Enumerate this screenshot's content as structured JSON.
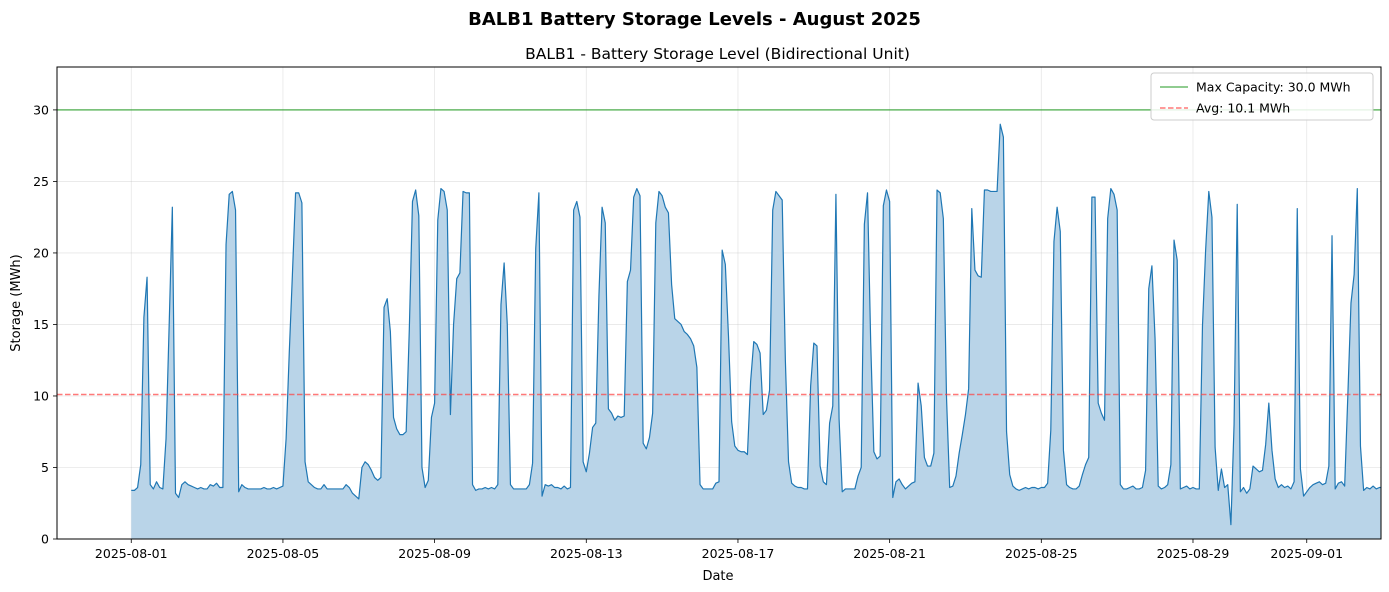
{
  "chart_data": {
    "type": "area",
    "suptitle": "BALB1 Battery Storage Levels - August 2025",
    "title": "BALB1 - Battery Storage Level (Bidirectional Unit)",
    "xlabel": "Date",
    "ylabel": "Storage (MWh)",
    "xlim": [
      "2025-07-30T01:00",
      "2025-09-02T23:00"
    ],
    "ylim": [
      0,
      33
    ],
    "x_ticks": [
      "2025-08-01",
      "2025-08-05",
      "2025-08-09",
      "2025-08-13",
      "2025-08-17",
      "2025-08-21",
      "2025-08-25",
      "2025-08-29",
      "2025-09-01"
    ],
    "y_ticks": [
      "0",
      "5",
      "10",
      "15",
      "20",
      "25",
      "30"
    ],
    "grid": true,
    "legend_position": "top-right",
    "reference_lines": [
      {
        "name": "Max Capacity: 30.0 MWh",
        "value": 30.0,
        "color": "#2ca02c",
        "style": "solid"
      },
      {
        "name": "Avg: 10.1 MWh",
        "value": 10.1,
        "color": "#ff4040",
        "style": "dashed"
      }
    ],
    "series": [
      {
        "color": "#1f77b4",
        "fill": "#b9d4e8",
        "start": "2025-08-01T00:00",
        "step_hours": 2,
        "values": [
          3.4,
          3.4,
          3.6,
          5.2,
          15.5,
          18.3,
          3.8,
          3.5,
          4.0,
          3.6,
          3.5,
          7.0,
          15.0,
          23.2,
          3.2,
          2.9,
          3.8,
          4.0,
          3.8,
          3.7,
          3.6,
          3.5,
          3.6,
          3.5,
          3.5,
          3.8,
          3.7,
          3.9,
          3.6,
          3.6,
          20.6,
          24.1,
          24.3,
          23.0,
          3.3,
          3.8,
          3.6,
          3.5,
          3.5,
          3.5,
          3.5,
          3.5,
          3.6,
          3.5,
          3.5,
          3.6,
          3.5,
          3.6,
          3.7,
          7.0,
          13.0,
          18.5,
          24.2,
          24.2,
          23.5,
          5.4,
          4.0,
          3.8,
          3.6,
          3.5,
          3.5,
          3.8,
          3.5,
          3.5,
          3.5,
          3.5,
          3.5,
          3.5,
          3.8,
          3.6,
          3.2,
          3.0,
          2.8,
          5.0,
          5.4,
          5.2,
          4.8,
          4.3,
          4.1,
          4.3,
          16.2,
          16.8,
          14.5,
          8.5,
          7.7,
          7.3,
          7.3,
          7.5,
          14.7,
          23.6,
          24.4,
          22.6,
          5.0,
          3.6,
          4.1,
          8.5,
          9.5,
          22.3,
          24.5,
          24.3,
          23.0,
          8.7,
          15.0,
          18.2,
          18.6,
          24.3,
          24.2,
          24.2,
          3.8,
          3.4,
          3.5,
          3.5,
          3.6,
          3.5,
          3.6,
          3.5,
          3.8,
          16.4,
          19.3,
          15.0,
          3.8,
          3.5,
          3.5,
          3.5,
          3.5,
          3.5,
          3.8,
          5.3,
          20.3,
          24.2,
          3.0,
          3.8,
          3.7,
          3.8,
          3.6,
          3.6,
          3.5,
          3.7,
          3.5,
          3.6,
          23.0,
          23.6,
          22.5,
          5.4,
          4.7,
          6.0,
          7.8,
          8.1,
          17.0,
          23.2,
          22.1,
          9.1,
          8.8,
          8.3,
          8.6,
          8.5,
          8.6,
          18.0,
          18.8,
          23.9,
          24.5,
          24.0,
          6.7,
          6.3,
          7.1,
          8.8,
          22.1,
          24.3,
          24.0,
          23.2,
          22.8,
          17.8,
          15.4,
          15.2,
          15.0,
          14.5,
          14.3,
          14.0,
          13.5,
          12.0,
          3.8,
          3.5,
          3.5,
          3.5,
          3.5,
          3.9,
          4.0,
          20.2,
          19.2,
          14.2,
          8.2,
          6.5,
          6.2,
          6.1,
          6.1,
          5.9,
          11.0,
          13.8,
          13.6,
          13.0,
          8.7,
          9.0,
          10.4,
          23.0,
          24.3,
          24.0,
          23.7,
          12.5,
          5.4,
          3.9,
          3.7,
          3.6,
          3.6,
          3.5,
          3.5,
          10.7,
          13.7,
          13.5,
          5.1,
          4.0,
          3.8,
          8.1,
          9.3,
          24.1,
          8.4,
          3.3,
          3.5,
          3.5,
          3.5,
          3.5,
          4.4,
          5.0,
          22.0,
          24.2,
          13.8,
          6.1,
          5.6,
          5.8,
          23.3,
          24.4,
          23.6,
          2.9,
          4.0,
          4.2,
          3.8,
          3.5,
          3.7,
          3.9,
          4.0,
          10.9,
          9.3,
          5.7,
          5.1,
          5.1,
          6.0,
          24.4,
          24.2,
          22.4,
          9.9,
          3.6,
          3.7,
          4.4,
          6.0,
          7.3,
          8.7,
          10.5,
          23.1,
          18.8,
          18.4,
          18.3,
          24.4,
          24.4,
          24.3,
          24.3,
          24.3,
          29.0,
          28.1,
          7.5,
          4.5,
          3.7,
          3.5,
          3.4,
          3.5,
          3.6,
          3.5,
          3.6,
          3.6,
          3.5,
          3.6,
          3.6,
          3.9,
          7.6,
          20.8,
          23.2,
          21.5,
          6.2,
          3.8,
          3.6,
          3.5,
          3.5,
          3.7,
          4.5,
          5.2,
          5.7,
          23.9,
          23.9,
          9.5,
          8.8,
          8.3,
          22.4,
          24.5,
          24.1,
          23.0,
          3.8,
          3.5,
          3.5,
          3.6,
          3.7,
          3.5,
          3.5,
          3.6,
          4.8,
          17.5,
          19.1,
          14.0,
          3.7,
          3.5,
          3.6,
          3.8,
          5.2,
          20.9,
          19.5,
          3.5,
          3.6,
          3.7,
          3.5,
          3.6,
          3.5,
          3.5,
          14.9,
          20.2,
          24.3,
          22.5,
          6.4,
          3.4,
          4.9,
          3.6,
          3.8,
          1.0,
          8.0,
          23.4,
          3.3,
          3.6,
          3.2,
          3.5,
          5.1,
          4.9,
          4.7,
          4.8,
          6.6,
          9.5,
          6.2,
          4.2,
          3.6,
          3.8,
          3.6,
          3.7,
          3.5,
          4.0,
          23.1,
          4.9,
          3.0,
          3.3,
          3.6,
          3.8,
          3.9,
          4.0,
          3.8,
          3.9,
          5.1,
          21.2,
          3.5,
          3.9,
          4.0,
          3.7,
          10.0,
          16.5,
          18.5,
          24.5,
          6.5,
          3.4,
          3.6,
          3.5,
          3.7,
          3.5,
          3.6,
          3.6,
          4.0,
          24.0,
          24.5,
          24.3,
          24.0,
          18.5,
          16.0,
          15.8,
          15.6,
          15.0,
          15.1,
          24.1,
          24.0,
          23.8,
          23.5,
          23.2,
          23.0,
          21.0,
          20.5,
          19.5,
          19.2,
          18.6,
          14.4,
          14.3,
          5.0,
          4.2,
          4.0,
          3.9,
          3.8,
          3.7,
          3.8,
          24.4,
          24.0,
          23.4,
          20.7,
          4.3,
          3.8,
          3.6,
          3.5,
          3.5,
          3.5,
          3.4,
          3.5,
          3.5,
          3.5,
          3.4,
          3.6,
          3.5,
          3.5,
          3.5,
          3.6,
          4.5,
          22.7,
          21.3,
          17.5,
          16.8,
          14.9,
          14.0,
          13.7,
          13.4,
          13.1,
          12.9,
          12.6,
          12.2,
          10.4,
          9.7,
          8.5,
          7.9,
          17.6,
          19.2,
          9.5,
          0.0,
          0.0,
          14.9,
          10.5,
          4.8,
          3.0,
          2.9,
          2.8,
          2.9,
          2.7,
          2.8,
          2.8,
          3.1,
          3.8,
          4.0,
          3.8,
          3.0,
          2.9,
          3.0,
          8.3,
          0.0,
          0.0,
          7.9,
          8.0,
          2.9,
          2.8,
          2.8,
          2.8,
          2.8,
          2.8,
          2.9,
          2.9,
          3.0,
          9.3,
          10.6,
          10.4,
          10.0,
          9.8,
          9.5,
          9.3,
          10.0,
          24.0,
          25.2,
          24.6,
          8.8,
          3.4,
          3.2,
          3.0,
          2.8,
          2.8,
          2.9,
          2.8,
          2.8,
          3.0,
          9.8,
          9.7,
          9.5,
          9.2,
          8.9,
          8.7,
          24.3,
          24.8,
          24.2,
          14.8,
          11.5,
          3.7,
          3.2,
          3.0,
          2.9,
          3.0,
          2.7,
          2.8,
          3.0,
          3.1,
          4.3,
          6.4,
          5.0,
          4.8,
          4.6,
          4.6,
          7.1,
          7.2,
          7.0,
          6.8,
          6.5,
          6.2,
          3.0,
          2.8,
          4.2,
          4.8,
          4.6,
          4.3,
          4.1,
          3.9,
          3.7,
          3.6,
          3.4,
          3.3,
          3.2,
          3.3,
          19.5,
          22.5,
          23.5,
          25.1,
          25.2,
          25.0,
          24.8,
          24.5,
          20.9,
          20.7,
          19.4,
          18.4,
          14.8,
          14.2,
          6.5,
          6.3,
          6.2,
          6.1,
          6.0,
          5.9,
          5.8,
          5.6,
          5.5,
          5.4,
          5.3,
          13.1,
          25.0,
          25.1,
          24.7,
          21.0,
          16.7,
          16.3,
          16.1
        ]
      }
    ]
  }
}
